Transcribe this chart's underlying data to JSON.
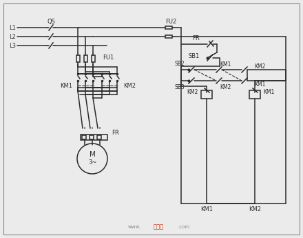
{
  "bg_color": "#ebebeb",
  "line_color": "#2a2a2a",
  "lw": 1.1,
  "figsize": [
    4.4,
    3.45
  ],
  "dpi": 100,
  "border": [
    5,
    5,
    430,
    335
  ],
  "L_labels": [
    "L1",
    "L2",
    "L3"
  ],
  "watermark1": "www.",
  "watermark2": "接线图",
  "watermark3": ".com"
}
